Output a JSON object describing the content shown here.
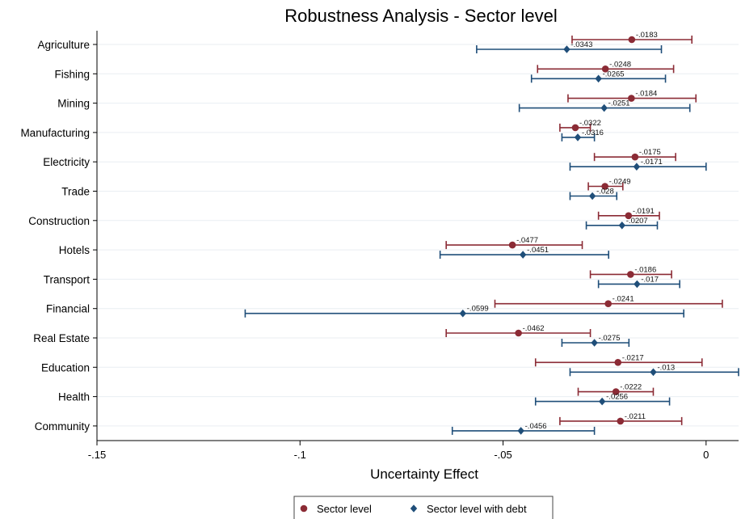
{
  "chart_data": {
    "type": "scatter",
    "subtype": "coefficient-plot-with-confidence-intervals",
    "title": "Robustness Analysis - Sector level",
    "xlabel": "Uncertainty Effect",
    "ylabel": "",
    "xlim": [
      -0.15,
      0.008
    ],
    "x_ticks": [
      -0.15,
      -0.1,
      -0.05,
      0
    ],
    "x_tick_labels": [
      "-.15",
      "-.1",
      "-.05",
      "0"
    ],
    "grid": "horizontal",
    "legend_position": "bottom",
    "categories": [
      "Agriculture",
      "Fishing",
      "Mining",
      "Manufacturing",
      "Electricity",
      "Trade",
      "Construction",
      "Hotels",
      "Transport",
      "Financial",
      "Real Estate",
      "Education",
      "Health",
      "Community"
    ],
    "series": [
      {
        "name": "Sector level",
        "color": "#8b2b35",
        "marker": "circle",
        "estimates": [
          -0.0183,
          -0.0248,
          -0.0184,
          -0.0322,
          -0.0175,
          -0.0249,
          -0.0191,
          -0.0477,
          -0.0186,
          -0.0241,
          -0.0462,
          -0.0217,
          -0.0222,
          -0.0211
        ],
        "labels": [
          "-.0183",
          "-.0248",
          "-.0184",
          "-.0322",
          "-.0175",
          "-.0249",
          "-.0191",
          "-.0477",
          "-.0186",
          "-.0241",
          "-.0462",
          "-.0217",
          "-.0222",
          "-.0211"
        ],
        "ci_low": [
          -0.033,
          -0.0415,
          -0.034,
          -0.036,
          -0.0275,
          -0.029,
          -0.0265,
          -0.064,
          -0.0285,
          -0.052,
          -0.064,
          -0.042,
          -0.0315,
          -0.036
        ],
        "ci_high": [
          -0.0035,
          -0.008,
          -0.0025,
          -0.0285,
          -0.0075,
          -0.0205,
          -0.0115,
          -0.0305,
          -0.0085,
          0.004,
          -0.0285,
          -0.001,
          -0.013,
          -0.006
        ]
      },
      {
        "name": "Sector level with debt",
        "color": "#1f4e79",
        "marker": "diamond",
        "estimates": [
          -0.0343,
          -0.0265,
          -0.0251,
          -0.0316,
          -0.0171,
          -0.028,
          -0.0207,
          -0.0451,
          -0.017,
          -0.0599,
          -0.0275,
          -0.013,
          -0.0256,
          -0.0456
        ],
        "labels": [
          "-.0343",
          "-.0265",
          "-.0251",
          "-.0316",
          "-.0171",
          "-.028",
          "-.0207",
          "-.0451",
          "-.017",
          "-.0599",
          "-.0275",
          "-.013",
          "-.0256",
          "-.0456"
        ],
        "ci_low": [
          -0.0565,
          -0.043,
          -0.046,
          -0.0355,
          -0.0335,
          -0.0335,
          -0.0295,
          -0.0655,
          -0.0265,
          -0.1135,
          -0.0355,
          -0.0335,
          -0.042,
          -0.0625
        ],
        "ci_high": [
          -0.011,
          -0.01,
          -0.004,
          -0.0275,
          0.0,
          -0.022,
          -0.012,
          -0.024,
          -0.0065,
          -0.0055,
          -0.019,
          0.008,
          -0.009,
          -0.0275
        ]
      }
    ]
  }
}
